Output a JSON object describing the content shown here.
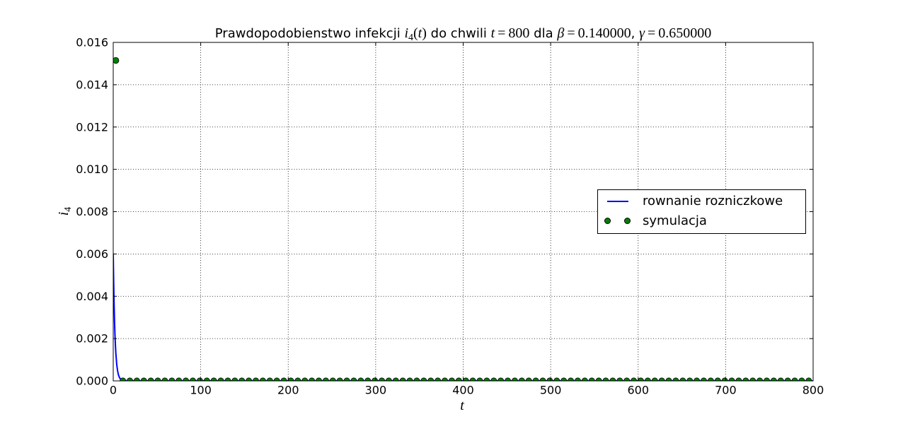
{
  "chart_data": {
    "type": "line",
    "title": {
      "lead": "Prawdopodobienstwo infekcji",
      "fn_symbol": "i",
      "fn_sub": "4",
      "paren_open": "(",
      "fn_arg": "t",
      "paren_close": ")",
      "mid": "do chwili",
      "t_symbol": "t",
      "equals": "=",
      "t_value": "800",
      "dla": "dla",
      "beta_symbol": "β",
      "beta_value": "0.140000",
      "separator": ",",
      "gamma_symbol": "γ",
      "gamma_value": "0.650000"
    },
    "xlabel": "t",
    "ylabel": {
      "symbol": "i",
      "sub": "4"
    },
    "xlim": [
      0,
      800
    ],
    "ylim": [
      0,
      0.016
    ],
    "x_ticks": [
      0,
      100,
      200,
      300,
      400,
      500,
      600,
      700,
      800
    ],
    "x_tick_labels": [
      "0",
      "100",
      "200",
      "300",
      "400",
      "500",
      "600",
      "700",
      "800"
    ],
    "y_ticks": [
      0,
      0.002,
      0.004,
      0.006,
      0.008,
      0.01,
      0.012,
      0.014,
      0.016
    ],
    "y_tick_labels": [
      "0.000",
      "0.002",
      "0.004",
      "0.006",
      "0.008",
      "0.010",
      "0.012",
      "0.014",
      "0.016"
    ],
    "grid": true,
    "legend_position": "center-right",
    "series": [
      {
        "name": "rownanie rozniczkowe",
        "style": "line",
        "color": "#0000ff",
        "x": [
          0,
          0.5,
          1,
          1.5,
          2,
          2.5,
          3,
          4,
          5,
          6,
          7,
          8,
          10,
          12,
          15,
          20,
          40,
          100,
          200,
          300,
          400,
          500,
          600,
          700,
          800
        ],
        "y": [
          0.006,
          0.00465,
          0.0036,
          0.00279,
          0.00216,
          0.00168,
          0.0013,
          0.00078,
          0.00047,
          0.00028,
          0.00017,
          0.0001,
          3.7e-05,
          1.3e-05,
          3e-06,
          0,
          0,
          0,
          0,
          0,
          0,
          0,
          0,
          0,
          0
        ]
      },
      {
        "name": "symulacja",
        "style": "markers",
        "color": "#008000",
        "edge_color": "#000000",
        "x": [
          3,
          11,
          19,
          27,
          35,
          43,
          51,
          59,
          67,
          75,
          83,
          91,
          99,
          107,
          115,
          123,
          131,
          139,
          147,
          155,
          163,
          171,
          179,
          187,
          195,
          203,
          211,
          219,
          227,
          235,
          243,
          251,
          259,
          267,
          275,
          283,
          291,
          299,
          307,
          315,
          323,
          331,
          339,
          347,
          355,
          363,
          371,
          379,
          387,
          395,
          403,
          411,
          419,
          427,
          435,
          443,
          451,
          459,
          467,
          475,
          483,
          491,
          499,
          507,
          515,
          523,
          531,
          539,
          547,
          555,
          563,
          571,
          579,
          587,
          595,
          603,
          611,
          619,
          627,
          635,
          643,
          651,
          659,
          667,
          675,
          683,
          691,
          699,
          707,
          715,
          723,
          731,
          739,
          747,
          755,
          763,
          771,
          779,
          787,
          795
        ],
        "y": [
          0.01515,
          0,
          0,
          0,
          0,
          0,
          0,
          0,
          0,
          0,
          0,
          0,
          0,
          0,
          0,
          0,
          0,
          0,
          0,
          0,
          0,
          0,
          0,
          0,
          0,
          0,
          0,
          0,
          0,
          0,
          0,
          0,
          0,
          0,
          0,
          0,
          0,
          0,
          0,
          0,
          0,
          0,
          0,
          0,
          0,
          0,
          0,
          0,
          0,
          0,
          0,
          0,
          0,
          0,
          0,
          0,
          0,
          0,
          0,
          0,
          0,
          0,
          0,
          0,
          0,
          0,
          0,
          0,
          0,
          0,
          0,
          0,
          0,
          0,
          0,
          0,
          0,
          0,
          0,
          0,
          0,
          0,
          0,
          0,
          0,
          0,
          0,
          0,
          0,
          0,
          0,
          0,
          0,
          0,
          0,
          0,
          0,
          0,
          0,
          0
        ]
      }
    ]
  }
}
